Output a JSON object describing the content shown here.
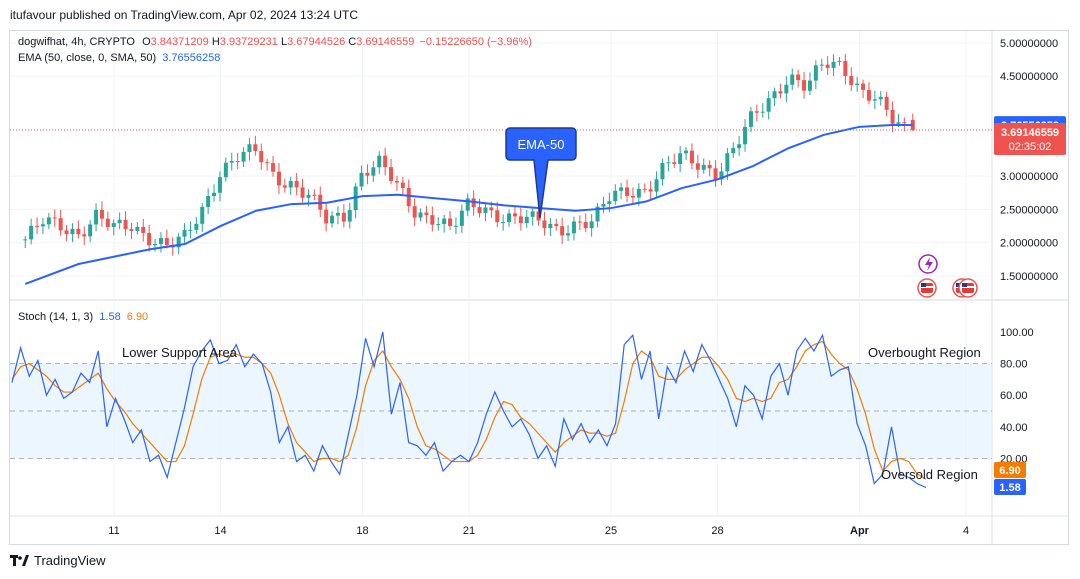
{
  "header": {
    "publisher": "itufavour published on TradingView.com, Apr 02, 2024 13:24 UTC"
  },
  "symbol_legend": {
    "name": "dogwifhat, 4h, CRYPTO",
    "o_label": "O",
    "o": "3.84371209",
    "h_label": "H",
    "h": "3.93729231",
    "l_label": "L",
    "l": "3.67944526",
    "c_label": "C",
    "c": "3.69146559",
    "change": "−0.15226650 (−3.96%)"
  },
  "ema_legend": {
    "name": "EMA (50, close, 0, SMA, 50)",
    "value": "3.76556258"
  },
  "stoch_legend": {
    "name": "Stoch (14, 1, 3)",
    "k": "1.58",
    "d": "6.90"
  },
  "annotations": {
    "ema_callout": "EMA-50",
    "lower_support": "Lower Support Area",
    "overbought": "Overbought Region",
    "oversold": "Oversold Region"
  },
  "price_axis": {
    "ticks": [
      "5.00000000",
      "4.50000000",
      "3.00000000",
      "2.50000000",
      "2.00000000",
      "1.50000000"
    ],
    "ema_label": "3.76556258",
    "price_label": "3.69146559",
    "countdown": "02:35:02"
  },
  "stoch_axis": {
    "ticks": [
      "100.00",
      "80.00",
      "60.00",
      "40.00",
      "20.00"
    ],
    "d_label": "6.90",
    "k_label": "1.58"
  },
  "time_axis": {
    "ticks": [
      "11",
      "14",
      "18",
      "21",
      "25",
      "28",
      "Apr",
      "4"
    ]
  },
  "footer": {
    "brand": "TradingView"
  },
  "colors": {
    "up": "#26a69a",
    "down": "#ef5350",
    "ema": "#2962ff",
    "k": "#2962ff",
    "d": "#f57c00",
    "band": "#e3f2fd",
    "price_line": "#ef5350",
    "callout": "#2962ff",
    "callout_border": "#1e3a8a"
  },
  "chart_data": [
    {
      "type": "candlestick",
      "title": "dogwifhat, 4h, CRYPTO",
      "x_ticks": [
        "11",
        "14",
        "18",
        "21",
        "25",
        "28",
        "Apr",
        "4"
      ],
      "y_ticks": [
        5.0,
        4.5,
        3.0,
        2.5,
        2.0,
        1.5
      ],
      "ylim": [
        1.0,
        5.3
      ],
      "grid": true,
      "last": {
        "open": 3.84371209,
        "high": 3.93729231,
        "low": 3.67944526,
        "close": 3.69146559
      },
      "close_path": [
        [
          "Mar 08 12:00",
          2.05
        ],
        [
          "Mar 09 00:00",
          2.3
        ],
        [
          "Mar 09 12:00",
          2.25
        ],
        [
          "Mar 10 00:00",
          2.15
        ],
        [
          "Mar 10 12:00",
          2.4
        ],
        [
          "Mar 11 00:00",
          2.2
        ],
        [
          "Mar 11 12:00",
          2.25
        ],
        [
          "Mar 12 00:00",
          2.1
        ],
        [
          "Mar 12 12:00",
          1.95
        ],
        [
          "Mar 13 00:00",
          2.05
        ],
        [
          "Mar 13 12:00",
          2.5
        ],
        [
          "Mar 14 00:00",
          3.1
        ],
        [
          "Mar 14 12:00",
          3.3
        ],
        [
          "Mar 15 00:00",
          3.35
        ],
        [
          "Mar 15 12:00",
          3.0
        ],
        [
          "Mar 16 00:00",
          2.9
        ],
        [
          "Mar 16 12:00",
          2.7
        ],
        [
          "Mar 17 00:00",
          2.3
        ],
        [
          "Mar 17 12:00",
          2.4
        ],
        [
          "Mar 18 00:00",
          3.1
        ],
        [
          "Mar 18 12:00",
          3.2
        ],
        [
          "Mar 19 00:00",
          2.8
        ],
        [
          "Mar 19 12:00",
          2.45
        ],
        [
          "Mar 20 00:00",
          2.4
        ],
        [
          "Mar 20 12:00",
          2.2
        ],
        [
          "Mar 21 00:00",
          2.55
        ],
        [
          "Mar 21 12:00",
          2.5
        ],
        [
          "Mar 22 00:00",
          2.4
        ],
        [
          "Mar 22 12:00",
          2.35
        ],
        [
          "Mar 23 00:00",
          2.3
        ],
        [
          "Mar 23 12:00",
          2.2
        ],
        [
          "Mar 24 00:00",
          2.3
        ],
        [
          "Mar 24 12:00",
          2.3
        ],
        [
          "Mar 25 00:00",
          2.7
        ],
        [
          "Mar 25 12:00",
          2.8
        ],
        [
          "Mar 26 00:00",
          2.8
        ],
        [
          "Mar 26 12:00",
          3.1
        ],
        [
          "Mar 27 00:00",
          3.3
        ],
        [
          "Mar 27 12:00",
          3.2
        ],
        [
          "Mar 28 00:00",
          3.05
        ],
        [
          "Mar 28 12:00",
          3.4
        ],
        [
          "Mar 29 00:00",
          3.9
        ],
        [
          "Mar 29 12:00",
          4.2
        ],
        [
          "Mar 30 00:00",
          4.5
        ],
        [
          "Mar 30 12:00",
          4.3
        ],
        [
          "Mar 31 00:00",
          4.7
        ],
        [
          "Mar 31 12:00",
          4.7
        ],
        [
          "Apr 01 00:00",
          4.3
        ],
        [
          "Apr 01 12:00",
          4.1
        ],
        [
          "Apr 02 00:00",
          3.8
        ],
        [
          "Apr 02 12:00",
          3.69
        ]
      ],
      "series": [
        {
          "name": "EMA (50, close, 0, SMA, 50)",
          "values": [
            [
              "Mar 08 12:00",
              1.38
            ],
            [
              "Mar 10 00:00",
              1.68
            ],
            [
              "Mar 12 00:00",
              1.9
            ],
            [
              "Mar 13 00:00",
              1.98
            ],
            [
              "Mar 14 00:00",
              2.25
            ],
            [
              "Mar 15 00:00",
              2.48
            ],
            [
              "Mar 16 00:00",
              2.58
            ],
            [
              "Mar 17 00:00",
              2.6
            ],
            [
              "Mar 18 00:00",
              2.7
            ],
            [
              "Mar 19 00:00",
              2.72
            ],
            [
              "Mar 20 00:00",
              2.67
            ],
            [
              "Mar 21 00:00",
              2.62
            ],
            [
              "Mar 22 00:00",
              2.56
            ],
            [
              "Mar 23 00:00",
              2.52
            ],
            [
              "Mar 24 00:00",
              2.48
            ],
            [
              "Mar 25 00:00",
              2.52
            ],
            [
              "Mar 26 00:00",
              2.62
            ],
            [
              "Mar 27 00:00",
              2.82
            ],
            [
              "Mar 28 00:00",
              2.95
            ],
            [
              "Mar 29 00:00",
              3.15
            ],
            [
              "Mar 30 00:00",
              3.42
            ],
            [
              "Mar 31 00:00",
              3.62
            ],
            [
              "Apr 01 00:00",
              3.74
            ],
            [
              "Apr 02 00:00",
              3.77
            ],
            [
              "Apr 02 12:00",
              3.76556258
            ]
          ]
        }
      ]
    },
    {
      "type": "line",
      "title": "Stoch (14, 1, 3)",
      "y_ticks": [
        100,
        80,
        60,
        40,
        20
      ],
      "ylim": [
        -10,
        110
      ],
      "band": [
        20,
        80
      ],
      "grid": true,
      "series": [
        {
          "name": "%K",
          "last": 1.58,
          "values": [
            68,
            90,
            72,
            82,
            60,
            70,
            58,
            62,
            74,
            68,
            88,
            40,
            58,
            45,
            30,
            38,
            18,
            22,
            8,
            30,
            52,
            78,
            88,
            95,
            80,
            82,
            92,
            78,
            86,
            80,
            62,
            30,
            40,
            18,
            22,
            12,
            28,
            18,
            10,
            35,
            60,
            96,
            78,
            100,
            48,
            68,
            30,
            28,
            22,
            30,
            12,
            18,
            22,
            18,
            30,
            48,
            62,
            50,
            40,
            45,
            35,
            20,
            28,
            15,
            45,
            32,
            42,
            30,
            38,
            28,
            42,
            92,
            98,
            70,
            88,
            45,
            78,
            68,
            88,
            75,
            92,
            82,
            70,
            58,
            40,
            66,
            60,
            45,
            72,
            80,
            60,
            88,
            96,
            88,
            98,
            72,
            76,
            78,
            42,
            28,
            4,
            10,
            40,
            10,
            8,
            4,
            1.58
          ]
        },
        {
          "name": "%D",
          "last": 6.9,
          "values": [
            70,
            78,
            80,
            76,
            72,
            66,
            62,
            62,
            66,
            70,
            74,
            64,
            56,
            50,
            42,
            36,
            30,
            24,
            18,
            18,
            28,
            48,
            70,
            84,
            86,
            84,
            86,
            84,
            84,
            80,
            74,
            60,
            42,
            30,
            24,
            18,
            20,
            20,
            18,
            22,
            40,
            66,
            82,
            88,
            78,
            70,
            58,
            40,
            28,
            26,
            22,
            18,
            18,
            18,
            22,
            32,
            46,
            56,
            54,
            46,
            42,
            36,
            30,
            24,
            30,
            34,
            38,
            36,
            36,
            34,
            36,
            56,
            80,
            88,
            84,
            72,
            70,
            70,
            76,
            80,
            84,
            84,
            78,
            70,
            58,
            56,
            58,
            56,
            58,
            68,
            70,
            78,
            88,
            92,
            94,
            86,
            80,
            76,
            64,
            48,
            26,
            12,
            18,
            20,
            18,
            10,
            6.9
          ]
        }
      ]
    }
  ]
}
